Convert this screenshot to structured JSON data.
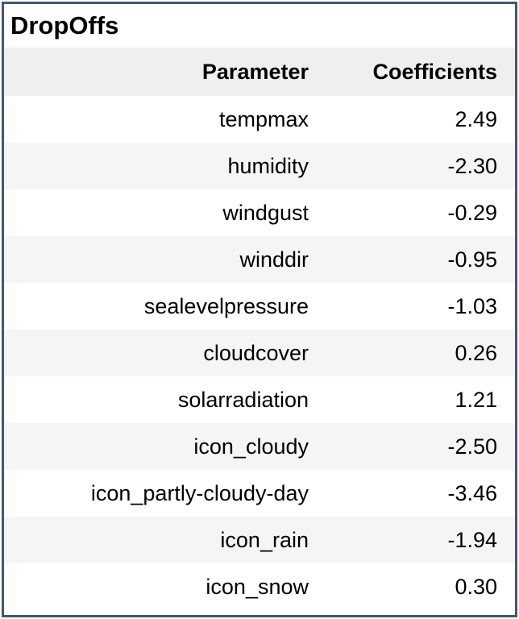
{
  "table": {
    "caption": "DropOffs",
    "columns": [
      "Parameter",
      "Coefficients"
    ],
    "rows": [
      {
        "parameter": "tempmax",
        "coefficient": "2.49"
      },
      {
        "parameter": "humidity",
        "coefficient": "-2.30"
      },
      {
        "parameter": "windgust",
        "coefficient": "-0.29"
      },
      {
        "parameter": "winddir",
        "coefficient": "-0.95"
      },
      {
        "parameter": "sealevelpressure",
        "coefficient": "-1.03"
      },
      {
        "parameter": "cloudcover",
        "coefficient": "0.26"
      },
      {
        "parameter": "solarradiation",
        "coefficient": "1.21"
      },
      {
        "parameter": "icon_cloudy",
        "coefficient": "-2.50"
      },
      {
        "parameter": "icon_partly-cloudy-day",
        "coefficient": "-3.46"
      },
      {
        "parameter": "icon_rain",
        "coefficient": "-1.94"
      },
      {
        "parameter": "icon_snow",
        "coefficient": "0.30"
      }
    ]
  },
  "colors": {
    "border": "#3d5a73",
    "header_background": "#efefef",
    "stripe_background": "#f5f5f5"
  }
}
